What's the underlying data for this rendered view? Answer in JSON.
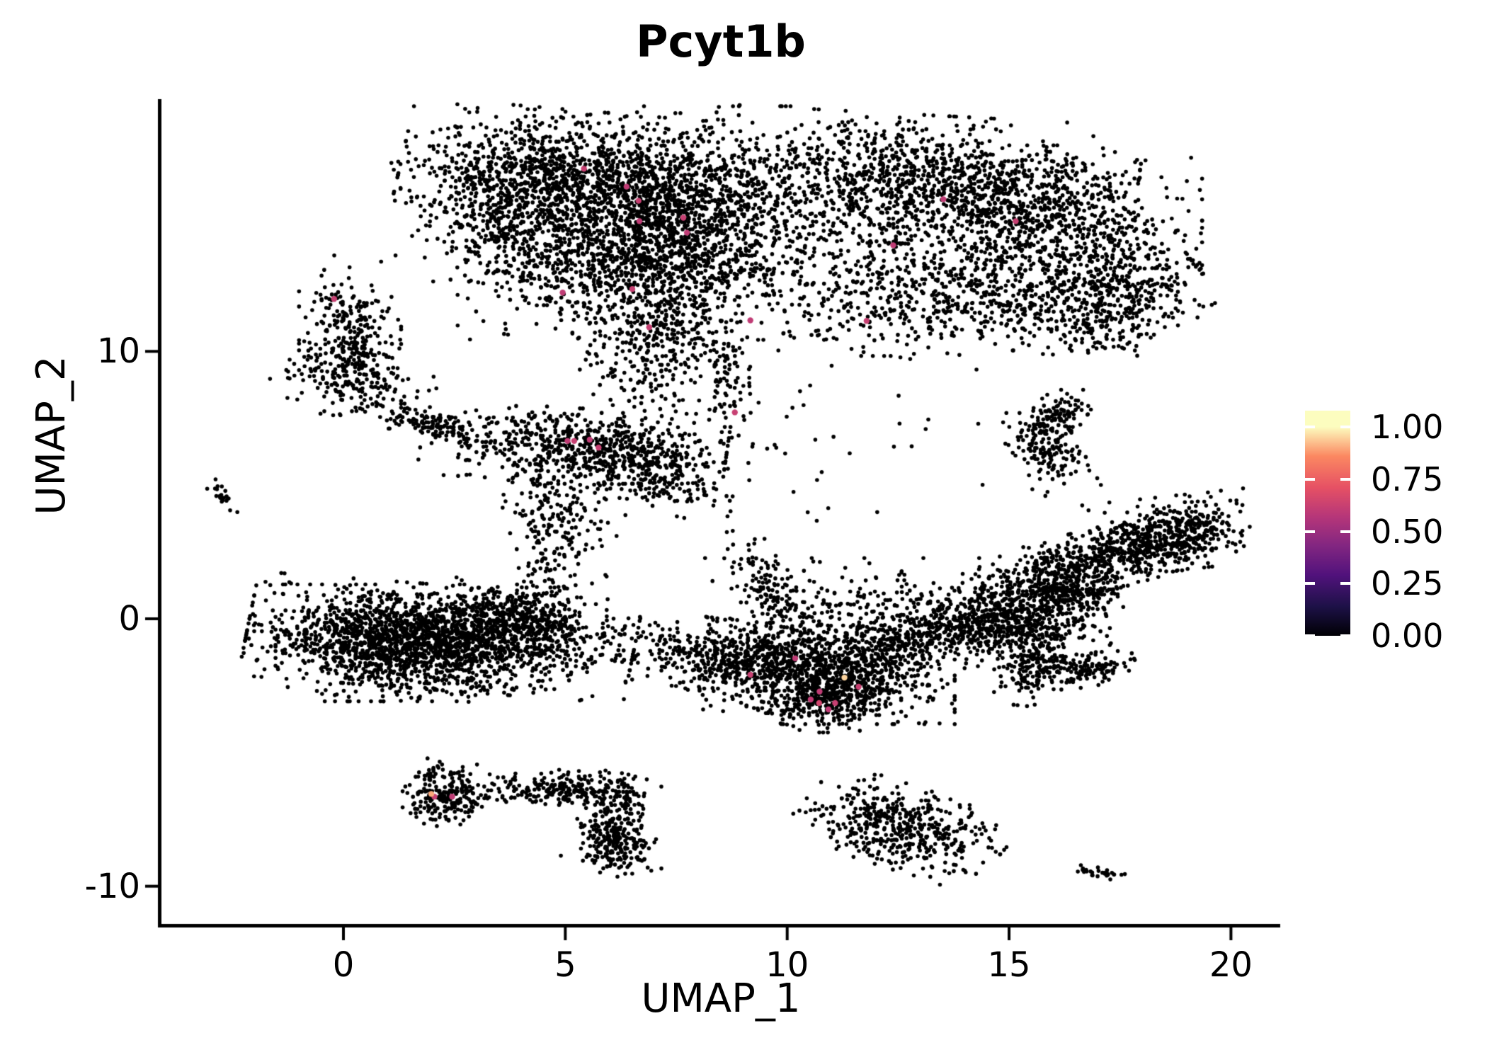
{
  "chart_data": {
    "type": "scatter",
    "title": "Pcyt1b",
    "xlabel": "UMAP_1",
    "ylabel": "UMAP_2",
    "x_ticks": [
      0,
      5,
      10,
      15,
      20
    ],
    "y_ticks": [
      -10,
      0,
      10
    ],
    "xlim": [
      -4.1,
      21.1
    ],
    "ylim": [
      -11.4,
      19.4
    ],
    "grid": false,
    "background": "#ffffff",
    "point_color_default": "#000000",
    "points_estimate": 14500,
    "colorbar": {
      "position": "right",
      "labels": [
        "1.00",
        "0.75",
        "0.50",
        "0.25",
        "0.00"
      ],
      "values": [
        1.0,
        0.75,
        0.5,
        0.25,
        0.0
      ],
      "colormap": "magma",
      "stops": [
        {
          "v": 0.0,
          "c": "#000004"
        },
        {
          "v": 0.14,
          "c": "#1d1147"
        },
        {
          "v": 0.29,
          "c": "#51127c"
        },
        {
          "v": 0.43,
          "c": "#822681"
        },
        {
          "v": 0.57,
          "c": "#b63679"
        },
        {
          "v": 0.71,
          "c": "#e65164"
        },
        {
          "v": 0.86,
          "c": "#fb8861"
        },
        {
          "v": 1.0,
          "c": "#fcfdbf"
        }
      ]
    },
    "clusters": [
      {
        "x": 5.6,
        "y": 16.3,
        "sx": 1.9,
        "sy": 1.15,
        "rot": -8,
        "n": 1600
      },
      {
        "x": 6.6,
        "y": 13.6,
        "sx": 1.35,
        "sy": 1.1,
        "rot": 0,
        "n": 900
      },
      {
        "x": 3.6,
        "y": 14.6,
        "sx": 0.85,
        "sy": 1.7,
        "rot": 12,
        "n": 420
      },
      {
        "x": 7.0,
        "y": 10.4,
        "sx": 0.8,
        "sy": 1.2,
        "rot": 0,
        "n": 350
      },
      {
        "x": 8.7,
        "y": 8.8,
        "sx": 0.25,
        "sy": 1.0,
        "rot": 5,
        "n": 80
      },
      {
        "x": 8.3,
        "y": 14.8,
        "sx": 1.1,
        "sy": 1.9,
        "rot": 0,
        "n": 550
      },
      {
        "x": 13.3,
        "y": 16.4,
        "sx": 2.0,
        "sy": 1.05,
        "rot": -5,
        "n": 950
      },
      {
        "x": 15.9,
        "y": 14.6,
        "sx": 1.5,
        "sy": 1.35,
        "rot": 0,
        "n": 750
      },
      {
        "x": 17.6,
        "y": 12.4,
        "sx": 0.8,
        "sy": 0.8,
        "rot": 30,
        "n": 280
      },
      {
        "x": 11.4,
        "y": 14.2,
        "sx": 1.2,
        "sy": 1.9,
        "rot": 0,
        "n": 420
      },
      {
        "x": 14.3,
        "y": 11.9,
        "sx": 1.9,
        "sy": 0.85,
        "rot": 8,
        "n": 480
      },
      {
        "x": 16.9,
        "y": 10.9,
        "sx": 0.7,
        "sy": 0.5,
        "rot": 0,
        "n": 120
      },
      {
        "x": 0.15,
        "y": 10.6,
        "sx": 0.5,
        "sy": 1.3,
        "rot": 0,
        "n": 300
      },
      {
        "x": 0.35,
        "y": 8.9,
        "sx": 0.85,
        "sy": 0.45,
        "rot": -15,
        "n": 130
      },
      {
        "x": 5.2,
        "y": 6.5,
        "sx": 1.5,
        "sy": 0.6,
        "rot": -5,
        "n": 560
      },
      {
        "x": 6.9,
        "y": 5.4,
        "sx": 0.95,
        "sy": 0.55,
        "rot": -20,
        "n": 260
      },
      {
        "x": 4.9,
        "y": 4.0,
        "sx": 0.55,
        "sy": 1.2,
        "rot": 10,
        "n": 200
      },
      {
        "x": 4.4,
        "y": 1.9,
        "sx": 0.25,
        "sy": 0.8,
        "rot": 0,
        "n": 45
      },
      {
        "x": 1.8,
        "y": 7.4,
        "sx": 0.5,
        "sy": 0.25,
        "rot": -20,
        "n": 90
      },
      {
        "x": 2.6,
        "y": 6.9,
        "sx": 0.5,
        "sy": 0.15,
        "rot": -25,
        "n": 25
      },
      {
        "x": -2.7,
        "y": 4.55,
        "sx": 0.12,
        "sy": 0.3,
        "rot": 15,
        "n": 22
      },
      {
        "x": 2.2,
        "y": -0.7,
        "sx": 1.9,
        "sy": 0.85,
        "rot": -7,
        "n": 1500
      },
      {
        "x": 1.0,
        "y": -0.9,
        "sx": 1.1,
        "sy": 0.95,
        "rot": 0,
        "n": 700
      },
      {
        "x": 4.0,
        "y": 0.0,
        "sx": 0.85,
        "sy": 0.5,
        "rot": -18,
        "n": 350
      },
      {
        "x": 2.6,
        "y": -2.3,
        "sx": 0.7,
        "sy": 0.35,
        "rot": 0,
        "n": 60
      },
      {
        "x": 4.7,
        "y": 1.3,
        "sx": 0.3,
        "sy": 0.25,
        "rot": 0,
        "n": 8
      },
      {
        "x": 9.55,
        "y": 1.0,
        "sx": 0.3,
        "sy": 1.05,
        "rot": 18,
        "n": 140
      },
      {
        "x": 8.6,
        "y": -1.4,
        "sx": 1.05,
        "sy": 0.6,
        "rot": -10,
        "n": 450
      },
      {
        "x": 10.9,
        "y": -2.1,
        "sx": 1.25,
        "sy": 0.8,
        "rot": 0,
        "n": 850
      },
      {
        "x": 10.9,
        "y": -3.1,
        "sx": 0.6,
        "sy": 0.5,
        "rot": 0,
        "n": 200
      },
      {
        "x": 13.3,
        "y": -0.6,
        "sx": 1.6,
        "sy": 0.6,
        "rot": 14,
        "n": 520
      },
      {
        "x": 11.6,
        "y": 0.2,
        "sx": 1.5,
        "sy": 0.9,
        "rot": 0,
        "n": 260
      },
      {
        "x": 16.8,
        "y": 2.1,
        "sx": 1.5,
        "sy": 0.5,
        "rot": 25,
        "n": 650
      },
      {
        "x": 18.7,
        "y": 3.2,
        "sx": 0.8,
        "sy": 0.6,
        "rot": 10,
        "n": 380
      },
      {
        "x": 15.0,
        "y": -0.05,
        "sx": 0.95,
        "sy": 0.6,
        "rot": 10,
        "n": 380
      },
      {
        "x": 16.4,
        "y": 0.9,
        "sx": 0.6,
        "sy": 0.28,
        "rot": 0,
        "n": 150
      },
      {
        "x": 15.6,
        "y": -1.2,
        "sx": 0.4,
        "sy": 0.9,
        "rot": -10,
        "n": 200
      },
      {
        "x": 16.5,
        "y": -1.9,
        "sx": 0.6,
        "sy": 0.3,
        "rot": 15,
        "n": 150
      },
      {
        "x": 16.2,
        "y": 7.6,
        "sx": 0.28,
        "sy": 0.42,
        "rot": 0,
        "n": 90
      },
      {
        "x": 15.85,
        "y": 6.3,
        "sx": 0.33,
        "sy": 0.7,
        "rot": 18,
        "n": 160
      },
      {
        "x": 2.3,
        "y": -6.6,
        "sx": 0.42,
        "sy": 0.5,
        "rot": 0,
        "n": 210
      },
      {
        "x": 2.0,
        "y": -5.7,
        "sx": 0.12,
        "sy": 0.4,
        "rot": 0,
        "n": 10
      },
      {
        "x": 3.5,
        "y": -6.7,
        "sx": 0.55,
        "sy": 0.1,
        "rot": 0,
        "n": 14
      },
      {
        "x": 4.95,
        "y": -6.35,
        "sx": 0.8,
        "sy": 0.3,
        "rot": -6,
        "n": 230
      },
      {
        "x": 6.05,
        "y": -7.5,
        "sx": 0.33,
        "sy": 0.75,
        "rot": -15,
        "n": 190
      },
      {
        "x": 6.3,
        "y": -8.55,
        "sx": 0.35,
        "sy": 0.45,
        "rot": 20,
        "n": 130
      },
      {
        "x": 12.6,
        "y": -7.8,
        "sx": 1.05,
        "sy": 0.65,
        "rot": -28,
        "n": 480
      },
      {
        "x": 17.1,
        "y": -9.5,
        "sx": 0.3,
        "sy": 0.1,
        "rot": -12,
        "n": 26
      },
      {
        "x": 16.65,
        "y": -9.35,
        "sx": 0.06,
        "sy": 0.06,
        "rot": 0,
        "n": 2
      },
      {
        "x": 11.5,
        "y": 6.5,
        "sx": 2.5,
        "sy": 1.6,
        "rot": 0,
        "n": 45
      }
    ],
    "expression_points": [
      {
        "x": 5.42,
        "y": 16.83,
        "value": 0.62
      },
      {
        "x": 6.38,
        "y": 16.16,
        "value": 0.6
      },
      {
        "x": 6.65,
        "y": 15.63,
        "value": 0.62
      },
      {
        "x": 6.67,
        "y": 14.87,
        "value": 0.6
      },
      {
        "x": 7.66,
        "y": 15.0,
        "value": 0.62
      },
      {
        "x": 7.74,
        "y": 14.44,
        "value": 0.6
      },
      {
        "x": 6.51,
        "y": 12.33,
        "value": 0.62
      },
      {
        "x": 4.94,
        "y": 12.2,
        "value": 0.6
      },
      {
        "x": 6.89,
        "y": 10.9,
        "value": 0.62
      },
      {
        "x": 9.17,
        "y": 11.16,
        "value": 0.6
      },
      {
        "x": 8.82,
        "y": 7.72,
        "value": 0.62
      },
      {
        "x": 13.52,
        "y": 15.69,
        "value": 0.6
      },
      {
        "x": 15.15,
        "y": 14.87,
        "value": 0.62
      },
      {
        "x": 12.39,
        "y": 13.97,
        "value": 0.6
      },
      {
        "x": 11.79,
        "y": 11.14,
        "value": 0.62
      },
      {
        "x": -0.21,
        "y": 11.96,
        "value": 0.62
      },
      {
        "x": 5.05,
        "y": 6.65,
        "value": 0.6
      },
      {
        "x": 5.2,
        "y": 6.65,
        "value": 0.62
      },
      {
        "x": 5.55,
        "y": 6.7,
        "value": 0.6
      },
      {
        "x": 5.75,
        "y": 6.4,
        "value": 0.62
      },
      {
        "x": 10.18,
        "y": -1.48,
        "value": 0.6
      },
      {
        "x": 9.17,
        "y": -2.09,
        "value": 0.62
      },
      {
        "x": 10.53,
        "y": -3.02,
        "value": 0.6
      },
      {
        "x": 10.72,
        "y": -3.15,
        "value": 0.65
      },
      {
        "x": 10.73,
        "y": -2.72,
        "value": 0.6
      },
      {
        "x": 11.08,
        "y": -3.15,
        "value": 0.62
      },
      {
        "x": 10.93,
        "y": -3.39,
        "value": 0.6
      },
      {
        "x": 11.61,
        "y": -2.54,
        "value": 0.62
      },
      {
        "x": 11.29,
        "y": -2.2,
        "value": 0.95
      },
      {
        "x": 2.05,
        "y": -6.65,
        "value": 0.62
      },
      {
        "x": 2.45,
        "y": -6.65,
        "value": 0.6
      },
      {
        "x": 1.98,
        "y": -6.55,
        "value": 0.9
      }
    ]
  }
}
